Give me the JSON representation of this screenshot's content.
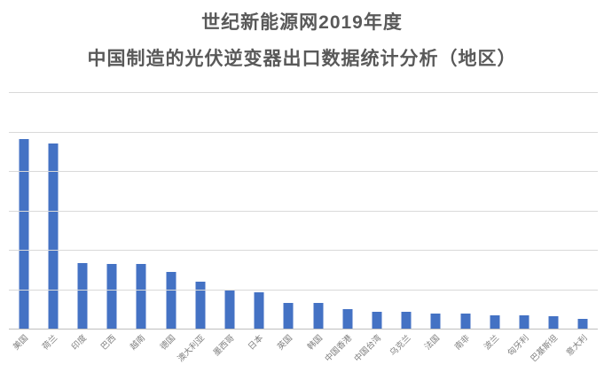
{
  "header": {
    "title_line1": "世纪新能源网2019年度",
    "title_line2": "中国制造的光伏逆变器出口数据统计分析（地区）",
    "title_color": "#595959"
  },
  "chart_data": {
    "type": "bar",
    "title": "世纪新能源网2019年度 中国制造的光伏逆变器出口数据统计分析（地区）",
    "categories": [
      "美国",
      "荷兰",
      "印度",
      "巴西",
      "越南",
      "德国",
      "澳大利亚",
      "墨西哥",
      "日本",
      "英国",
      "韩国",
      "中国香港",
      "中国台湾",
      "乌克兰",
      "法国",
      "南非",
      "波兰",
      "匈牙利",
      "巴基斯坦",
      "意大利"
    ],
    "values": [
      4.83,
      4.72,
      1.69,
      1.66,
      1.66,
      1.46,
      1.21,
      1.01,
      0.94,
      0.68,
      0.68,
      0.52,
      0.45,
      0.45,
      0.4,
      0.4,
      0.36,
      0.36,
      0.33,
      0.27
    ],
    "value_note": "y-axis has no tick labels; values expressed in gridline units (1 unit = one horizontal gridline interval)",
    "xlabel": "",
    "ylabel": "",
    "ylim": [
      0,
      6
    ],
    "gridline_count": 7,
    "grid": "horizontal",
    "legend_position": "none",
    "x_tick_rotation_deg": 45,
    "bar_color": "#4472c4",
    "gridline_color": "#d9d9d9",
    "axis_label_color": "#7f7f7f"
  }
}
